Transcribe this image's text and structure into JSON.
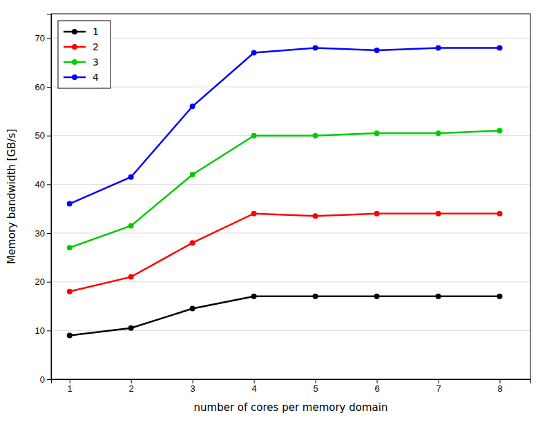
{
  "chart_data": {
    "type": "line",
    "xlabel": "number of cores per memory domain",
    "ylabel": "Memory bandwidth [GB/s]",
    "x": [
      1,
      2,
      3,
      4,
      5,
      6,
      7,
      8
    ],
    "series": [
      {
        "name": "1",
        "color": "#000000",
        "values": [
          9.0,
          10.5,
          14.5,
          17.0,
          17.0,
          17.0,
          17.0,
          17.0
        ]
      },
      {
        "name": "2",
        "color": "#ff0000",
        "values": [
          18.0,
          21.0,
          28.0,
          34.0,
          33.5,
          34.0,
          34.0,
          34.0
        ]
      },
      {
        "name": "3",
        "color": "#00cc00",
        "values": [
          27.0,
          31.5,
          42.0,
          50.0,
          50.0,
          50.5,
          50.5,
          51.0
        ]
      },
      {
        "name": "4",
        "color": "#0000ff",
        "values": [
          36.0,
          41.5,
          56.0,
          67.0,
          68.0,
          67.5,
          68.0,
          68.0
        ]
      }
    ],
    "xlim": [
      0.7,
      8.5
    ],
    "ylim": [
      0,
      75
    ],
    "xticks": [
      1,
      2,
      3,
      4,
      5,
      6,
      7,
      8
    ],
    "yticks": [
      0,
      10,
      20,
      30,
      40,
      50,
      60,
      70
    ],
    "grid": "y",
    "legend": "upper left",
    "marker": "circle"
  }
}
